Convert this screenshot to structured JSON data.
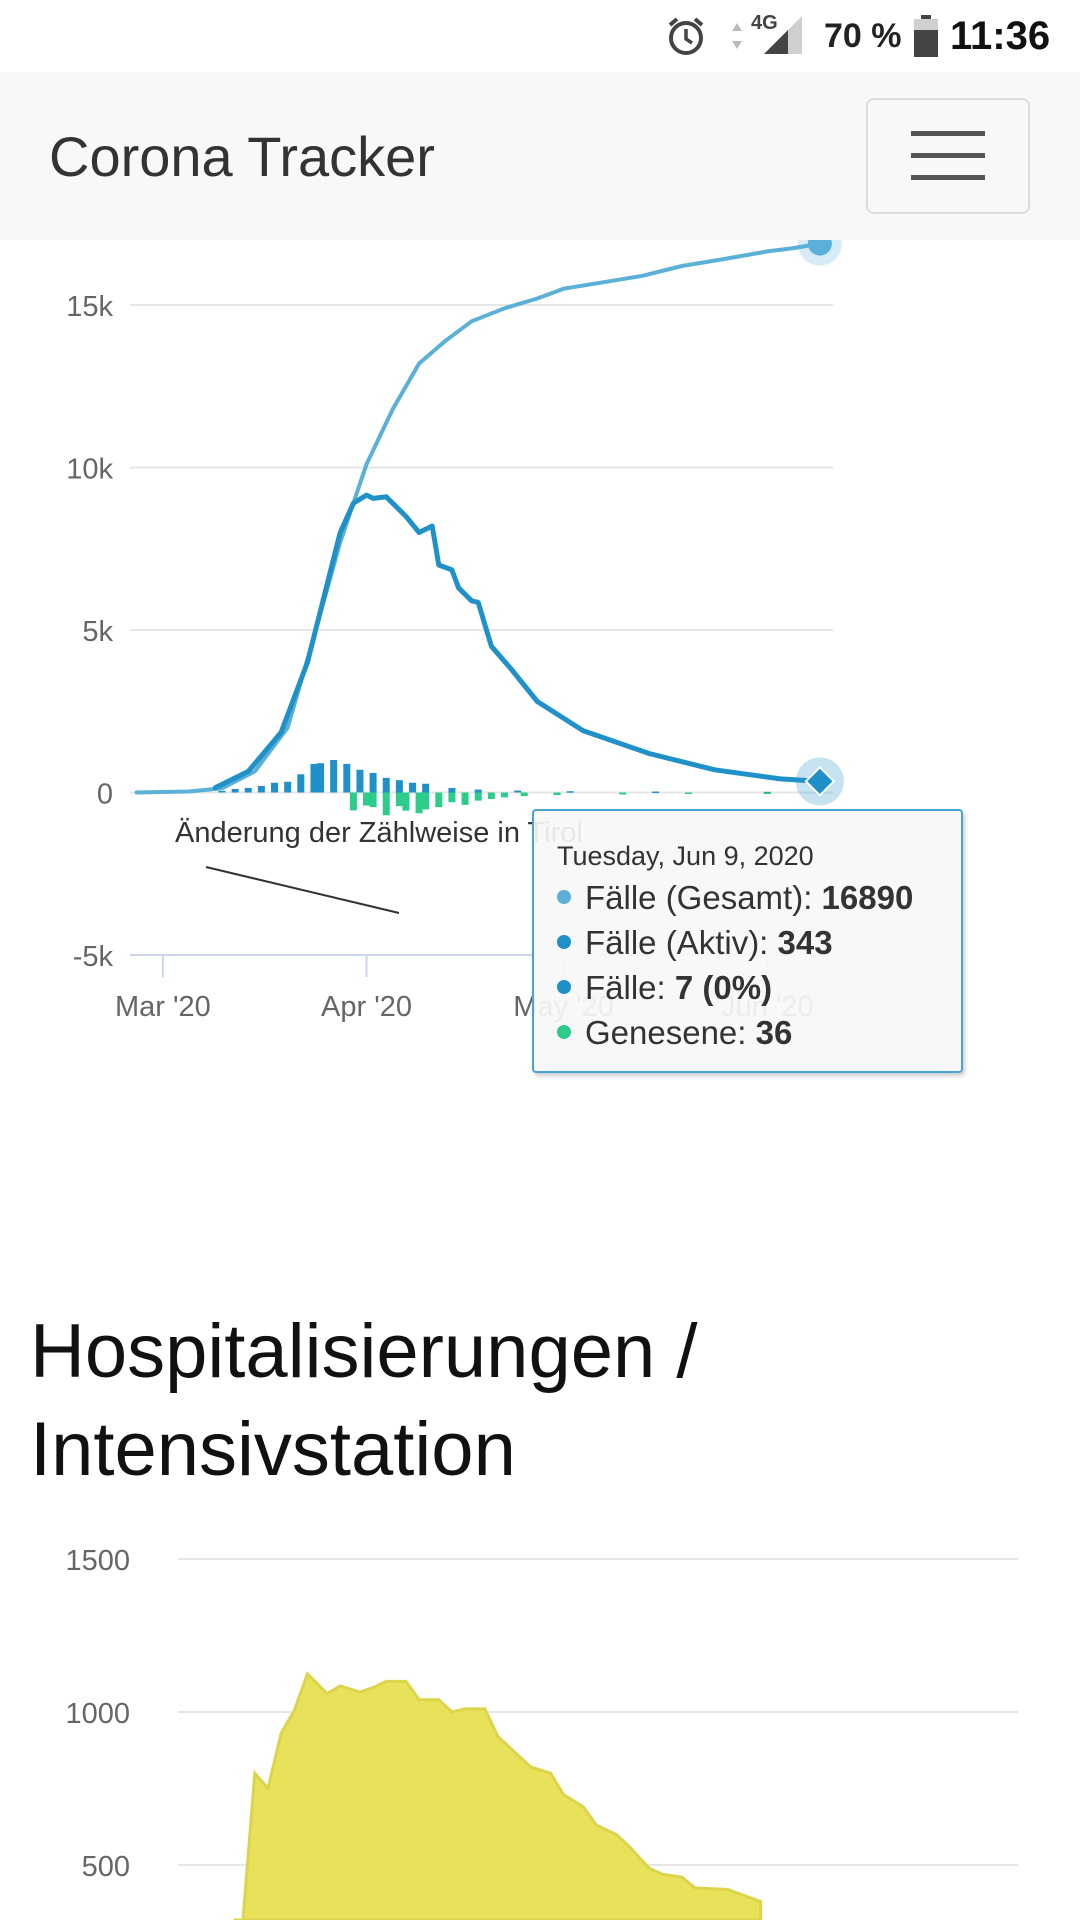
{
  "status_bar": {
    "network": "4G",
    "battery": "70 %",
    "time": "11:36",
    "icons": [
      "alarm-icon",
      "data-arrows-icon",
      "signal-icon",
      "battery-icon"
    ]
  },
  "navbar": {
    "brand": "Corona Tracker",
    "menu_icon": "hamburger-icon"
  },
  "colors": {
    "total": "#5ab0d6",
    "active": "#1f91c8",
    "new": "#1f91c8",
    "recovered": "#2ccc8a",
    "hospital": "#e8e15a"
  },
  "cases_chart": {
    "annotation": "Änderung der Zählweise in Tirol",
    "tooltip": {
      "date": "Tuesday, Jun 9, 2020",
      "rows": [
        {
          "label": "Fälle (Gesamt): ",
          "value": "16890",
          "color": "#5ab0d6"
        },
        {
          "label": "Fälle (Aktiv): ",
          "value": "343",
          "color": "#1f91c8"
        },
        {
          "label": "Fälle: ",
          "value": "7 (0%)",
          "color": "#1f91c8"
        },
        {
          "label": "Genesene: ",
          "value": "36",
          "color": "#2ccc8a"
        }
      ]
    }
  },
  "hospital_section": {
    "title": "Hospitalisierungen / Intensivstation"
  },
  "chart_data": [
    {
      "type": "line",
      "x_type": "date",
      "xlim": [
        "2020-02-25",
        "2020-06-11"
      ],
      "ylim": [
        -5000,
        17000
      ],
      "yticks": [
        {
          "value": 15000,
          "label": "15k"
        },
        {
          "value": 10000,
          "label": "10k"
        },
        {
          "value": 5000,
          "label": "5k"
        },
        {
          "value": 0,
          "label": "0"
        },
        {
          "value": -5000,
          "label": "-5k"
        }
      ],
      "xticks": [
        {
          "value": "2020-03-01",
          "label": "Mar '20"
        },
        {
          "value": "2020-04-01",
          "label": "Apr '20"
        },
        {
          "value": "2020-05-01",
          "label": "May '20"
        },
        {
          "value": "2020-06-01",
          "label": "Jun '20"
        }
      ],
      "grid": true,
      "series": [
        {
          "name": "Fälle (Gesamt)",
          "style": "line",
          "color": "#5ab0d6",
          "points": [
            [
              "2020-02-26",
              0
            ],
            [
              "2020-03-05",
              30
            ],
            [
              "2020-03-10",
              130
            ],
            [
              "2020-03-15",
              650
            ],
            [
              "2020-03-20",
              2000
            ],
            [
              "2020-03-24",
              4800
            ],
            [
              "2020-03-28",
              7700
            ],
            [
              "2020-04-01",
              10100
            ],
            [
              "2020-04-05",
              11800
            ],
            [
              "2020-04-09",
              13200
            ],
            [
              "2020-04-13",
              13900
            ],
            [
              "2020-04-17",
              14500
            ],
            [
              "2020-04-22",
              14900
            ],
            [
              "2020-04-27",
              15200
            ],
            [
              "2020-05-01",
              15500
            ],
            [
              "2020-05-07",
              15700
            ],
            [
              "2020-05-13",
              15900
            ],
            [
              "2020-05-19",
              16200
            ],
            [
              "2020-05-25",
              16400
            ],
            [
              "2020-06-01",
              16650
            ],
            [
              "2020-06-05",
              16750
            ],
            [
              "2020-06-09",
              16890
            ]
          ]
        },
        {
          "name": "Fälle (Aktiv)",
          "style": "line",
          "color": "#1f91c8",
          "points": [
            [
              "2020-03-09",
              150
            ],
            [
              "2020-03-14",
              650
            ],
            [
              "2020-03-19",
              1850
            ],
            [
              "2020-03-23",
              4000
            ],
            [
              "2020-03-26",
              6400
            ],
            [
              "2020-03-28",
              8000
            ],
            [
              "2020-03-30",
              8900
            ],
            [
              "2020-04-01",
              9150
            ],
            [
              "2020-04-02",
              9050
            ],
            [
              "2020-04-04",
              9100
            ],
            [
              "2020-04-07",
              8500
            ],
            [
              "2020-04-09",
              8000
            ],
            [
              "2020-04-11",
              8200
            ],
            [
              "2020-04-12",
              7000
            ],
            [
              "2020-04-14",
              6850
            ],
            [
              "2020-04-15",
              6300
            ],
            [
              "2020-04-17",
              5900
            ],
            [
              "2020-04-18",
              5850
            ],
            [
              "2020-04-20",
              4500
            ],
            [
              "2020-04-23",
              3800
            ],
            [
              "2020-04-27",
              2800
            ],
            [
              "2020-05-04",
              1900
            ],
            [
              "2020-05-14",
              1200
            ],
            [
              "2020-05-24",
              700
            ],
            [
              "2020-06-03",
              420
            ],
            [
              "2020-06-09",
              343
            ]
          ]
        },
        {
          "name": "Fälle",
          "style": "bar",
          "color": "#1f91c8",
          "points": [
            [
              "2020-03-10",
              50
            ],
            [
              "2020-03-12",
              110
            ],
            [
              "2020-03-14",
              140
            ],
            [
              "2020-03-16",
              200
            ],
            [
              "2020-03-18",
              300
            ],
            [
              "2020-03-20",
              330
            ],
            [
              "2020-03-22",
              560
            ],
            [
              "2020-03-24",
              880
            ],
            [
              "2020-03-25",
              900
            ],
            [
              "2020-03-27",
              1000
            ],
            [
              "2020-03-29",
              880
            ],
            [
              "2020-03-31",
              700
            ],
            [
              "2020-04-02",
              600
            ],
            [
              "2020-04-04",
              450
            ],
            [
              "2020-04-06",
              380
            ],
            [
              "2020-04-08",
              300
            ],
            [
              "2020-04-10",
              270
            ],
            [
              "2020-04-14",
              140
            ],
            [
              "2020-04-18",
              90
            ],
            [
              "2020-04-24",
              60
            ],
            [
              "2020-05-02",
              40
            ],
            [
              "2020-05-15",
              30
            ],
            [
              "2020-06-01",
              20
            ],
            [
              "2020-06-09",
              7
            ]
          ]
        },
        {
          "name": "Genesene",
          "style": "bar",
          "color": "#2ccc8a",
          "points": [
            [
              "2020-03-30",
              -550
            ],
            [
              "2020-04-01",
              -400
            ],
            [
              "2020-04-02",
              -450
            ],
            [
              "2020-04-04",
              -700
            ],
            [
              "2020-04-06",
              -420
            ],
            [
              "2020-04-07",
              -560
            ],
            [
              "2020-04-09",
              -640
            ],
            [
              "2020-04-10",
              -520
            ],
            [
              "2020-04-12",
              -450
            ],
            [
              "2020-04-14",
              -300
            ],
            [
              "2020-04-16",
              -380
            ],
            [
              "2020-04-18",
              -250
            ],
            [
              "2020-04-20",
              -200
            ],
            [
              "2020-04-22",
              -150
            ],
            [
              "2020-04-25",
              -110
            ],
            [
              "2020-04-30",
              -80
            ],
            [
              "2020-05-10",
              -60
            ],
            [
              "2020-05-20",
              -40
            ],
            [
              "2020-06-01",
              -30
            ],
            [
              "2020-06-09",
              -36
            ]
          ]
        }
      ]
    },
    {
      "type": "area",
      "ylim": [
        0,
        1500
      ],
      "yticks": [
        {
          "value": 1500,
          "label": "1500"
        },
        {
          "value": 1000,
          "label": "1000"
        },
        {
          "value": 500,
          "label": "500"
        }
      ],
      "grid": true,
      "series": [
        {
          "color": "#e8e15a",
          "points": [
            [
              "2020-03-12",
              0
            ],
            [
              "2020-03-15",
              800
            ],
            [
              "2020-03-17",
              750
            ],
            [
              "2020-03-19",
              930
            ],
            [
              "2020-03-21",
              1005
            ],
            [
              "2020-03-23",
              1125
            ],
            [
              "2020-03-26",
              1060
            ],
            [
              "2020-03-28",
              1085
            ],
            [
              "2020-03-31",
              1065
            ],
            [
              "2020-04-02",
              1080
            ],
            [
              "2020-04-04",
              1100
            ],
            [
              "2020-04-07",
              1100
            ],
            [
              "2020-04-09",
              1040
            ],
            [
              "2020-04-12",
              1040
            ],
            [
              "2020-04-14",
              1000
            ],
            [
              "2020-04-16",
              1010
            ],
            [
              "2020-04-19",
              1010
            ],
            [
              "2020-04-21",
              920
            ],
            [
              "2020-04-24",
              860
            ],
            [
              "2020-04-26",
              820
            ],
            [
              "2020-04-29",
              800
            ],
            [
              "2020-05-01",
              730
            ],
            [
              "2020-05-04",
              690
            ],
            [
              "2020-05-06",
              630
            ],
            [
              "2020-05-09",
              600
            ],
            [
              "2020-05-11",
              560
            ],
            [
              "2020-05-14",
              490
            ],
            [
              "2020-05-16",
              470
            ],
            [
              "2020-05-19",
              460
            ],
            [
              "2020-05-21",
              425
            ],
            [
              "2020-05-26",
              420
            ],
            [
              "2020-05-31",
              380
            ]
          ]
        }
      ]
    }
  ]
}
